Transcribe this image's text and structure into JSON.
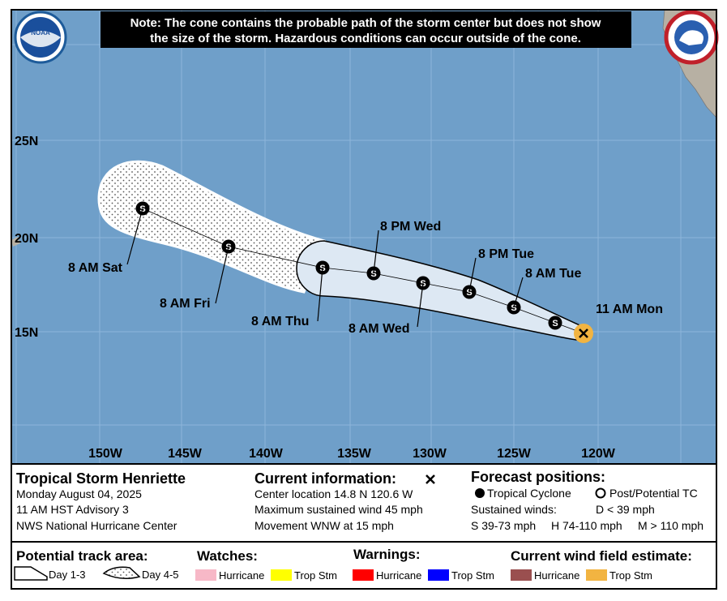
{
  "note": [
    "Note: The cone contains the probable path of the storm center but does not show",
    "the size of the storm. Hazardous conditions can occur outside of the cone."
  ],
  "logo": "NOAA",
  "latitudes": [
    "25N",
    "20N",
    "15N"
  ],
  "longitudes": [
    "150W",
    "145W",
    "140W",
    "135W",
    "130W",
    "125W",
    "120W"
  ],
  "marker": "S",
  "forecast_labels": [
    "11 AM Mon",
    "8 AM Tue",
    "8 PM Tue",
    "8 AM Wed",
    "8 PM Wed",
    "8 AM Thu",
    "8 AM Fri",
    "8 AM Sat"
  ],
  "storm": {
    "name": "Tropical Storm Henriette",
    "date": "Monday August 04, 2025",
    "advisory": "11 AM HST Advisory 3",
    "center": "NWS National Hurricane Center"
  },
  "current": {
    "title": "Current information:",
    "lines": [
      "Center location 14.8 N 120.6 W",
      "Maximum sustained wind 45 mph",
      "Movement WNW at 15 mph"
    ]
  },
  "forecast_positions": {
    "title": "Forecast positions:",
    "tropical": "Tropical Cyclone",
    "post": "Post/Potential TC",
    "winds": "Sustained winds:",
    "d": "D < 39 mph",
    "s": "S 39-73 mph",
    "h": "H 74-110 mph",
    "m": "M > 110 mph"
  },
  "legend": {
    "track_title": "Potential track area:",
    "day13": "Day 1-3",
    "day45": "Day 4-5",
    "watches": "Watches:",
    "watch_items": [
      "Hurricane",
      "Trop Stm"
    ],
    "warnings": "Warnings:",
    "warning_items": [
      "Hurricane",
      "Trop Stm"
    ],
    "wind": "Current wind field estimate:",
    "wind_items": [
      "Hurricane",
      "Trop Stm"
    ]
  }
}
